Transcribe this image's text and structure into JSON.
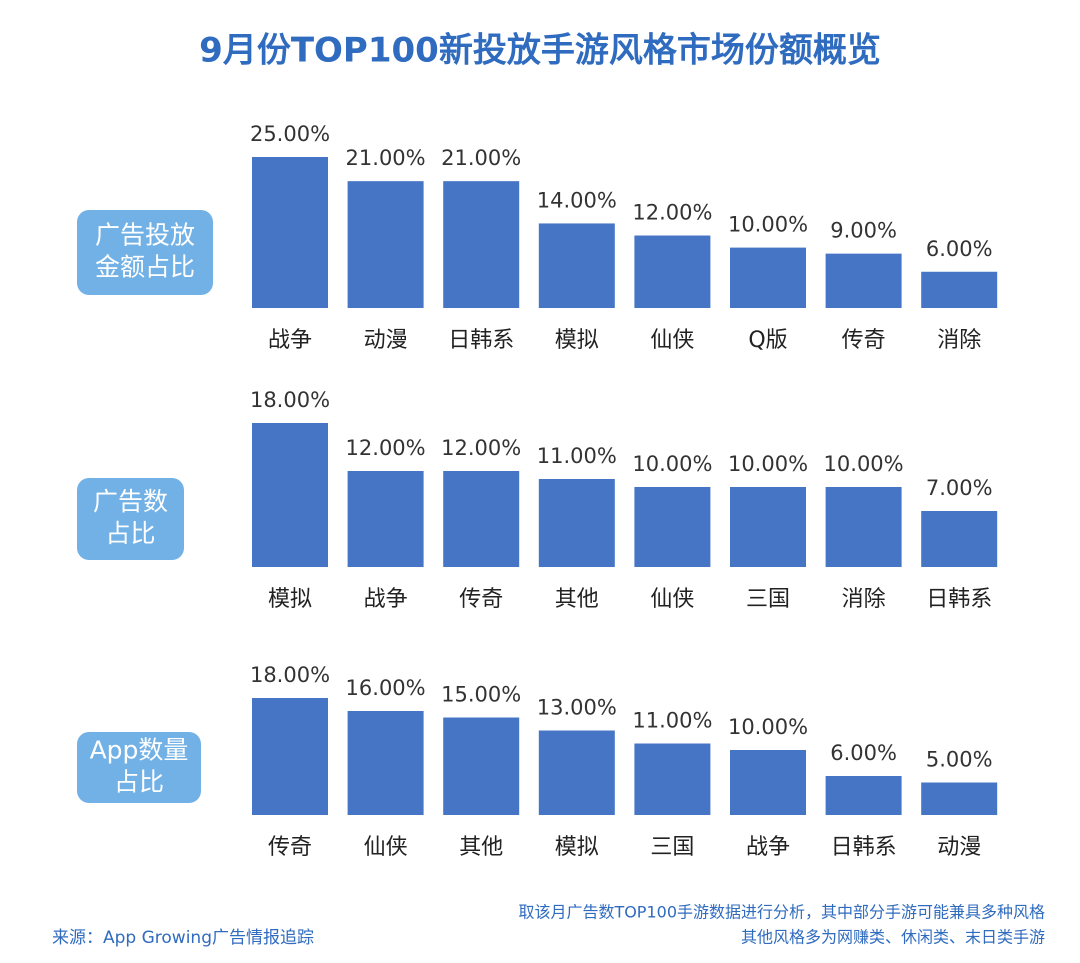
{
  "title": "9月份TOP100新投放手游风格市场份额概览",
  "source": "来源：App Growing广告情报追踪",
  "notes": [
    "取该月广告数TOP100手游数据进行分析，其中部分手游可能兼具多种风格",
    "其他风格多为网赚类、休闲类、末日类手游"
  ],
  "chart_data": [
    {
      "type": "bar",
      "title": [
        "广告投放",
        "金额占比"
      ],
      "color": "#4775c6",
      "categories": [
        "战争",
        "动漫",
        "日韩系",
        "模拟",
        "仙侠",
        "Q版",
        "传奇",
        "消除"
      ],
      "values": [
        25,
        21,
        21,
        14,
        12,
        10,
        9,
        6
      ],
      "value_labels": [
        "25.00%",
        "21.00%",
        "21.00%",
        "14.00%",
        "12.00%",
        "10.00%",
        "9.00%",
        "6.00%"
      ]
    },
    {
      "type": "bar",
      "title": [
        "广告数",
        "占比"
      ],
      "color": "#4775c6",
      "categories": [
        "模拟",
        "战争",
        "传奇",
        "其他",
        "仙侠",
        "三国",
        "消除",
        "日韩系"
      ],
      "values": [
        18,
        12,
        12,
        11,
        10,
        10,
        10,
        7
      ],
      "value_labels": [
        "18.00%",
        "12.00%",
        "12.00%",
        "11.00%",
        "10.00%",
        "10.00%",
        "10.00%",
        "7.00%"
      ]
    },
    {
      "type": "bar",
      "title": [
        "App数量",
        "占比"
      ],
      "color": "#4775c6",
      "categories": [
        "传奇",
        "仙侠",
        "其他",
        "模拟",
        "三国",
        "战争",
        "日韩系",
        "动漫"
      ],
      "values": [
        18,
        16,
        15,
        13,
        11,
        10,
        6,
        5
      ],
      "value_labels": [
        "18.00%",
        "16.00%",
        "15.00%",
        "13.00%",
        "11.00%",
        "10.00%",
        "6.00%",
        "5.00%"
      ]
    }
  ]
}
